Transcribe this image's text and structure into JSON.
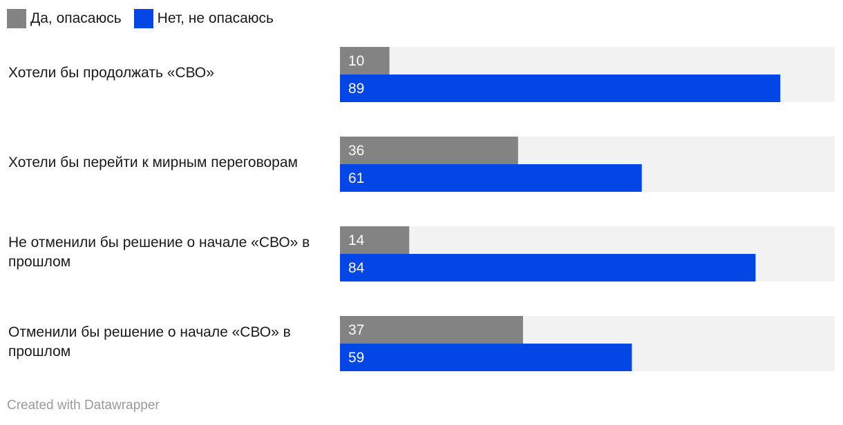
{
  "chart_data": {
    "type": "bar",
    "orientation": "horizontal",
    "layout": "grouped",
    "xlim": [
      0,
      100
    ],
    "grid": false,
    "legend_position": "top-left",
    "categories": [
      "Хотели бы продолжать «СВО»",
      "Хотели бы перейти к мирным переговорам",
      "Не отменили бы решение о начале «СВО» в прошлом",
      "Отменили бы решение о начале «СВО» в прошлом"
    ],
    "series": [
      {
        "name": "Да, опасаюсь",
        "color": "#838383",
        "values": [
          10,
          36,
          14,
          37
        ]
      },
      {
        "name": "Нет, не опасаюсь",
        "color": "#0246e5",
        "values": [
          89,
          61,
          84,
          59
        ]
      }
    ],
    "track_color": "#f2f2f2"
  },
  "footer": {
    "credit": "Created with Datawrapper"
  }
}
